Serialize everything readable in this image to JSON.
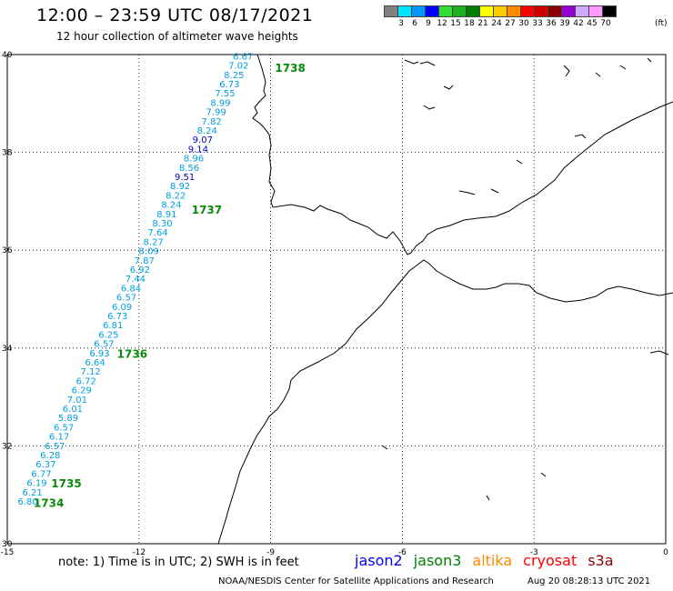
{
  "header": {
    "title": "12:00 – 23:59 UTC 08/17/2021",
    "subtitle": "12 hour collection of altimeter wave heights"
  },
  "legend": {
    "colors": [
      "#808080",
      "#00e5ff",
      "#0096ff",
      "#0000ff",
      "#33dd33",
      "#1fb01f",
      "#008000",
      "#ffff00",
      "#ffcc00",
      "#ff8c00",
      "#ff0000",
      "#cc0000",
      "#8b0000",
      "#9400d3",
      "#ccaaff",
      "#ff99ff",
      "#000000"
    ],
    "labels": [
      "3",
      "6",
      "9",
      "12",
      "15",
      "18",
      "21",
      "24",
      "27",
      "30",
      "33",
      "36",
      "39",
      "42",
      "45",
      "70"
    ],
    "unit": "(ft)"
  },
  "axes": {
    "lon_ticks": [
      "-15",
      "-12",
      "-9",
      "-6",
      "-3",
      "0"
    ],
    "lat_ticks": [
      "40",
      "38",
      "36",
      "34",
      "32",
      "30"
    ]
  },
  "chart_data": {
    "type": "map-track",
    "lon_range": [
      -15,
      0
    ],
    "lat_range": [
      30,
      40
    ],
    "track_values": [
      "6.67",
      "7.02",
      "8.25",
      "6.73",
      "7.55",
      "8.99",
      "7.99",
      "7.82",
      "8.24",
      "9.07",
      "9.14",
      "8.96",
      "8.56",
      "9.51",
      "8.92",
      "8.22",
      "8.24",
      "8.91",
      "8.30",
      "7.64",
      "8.27",
      "8.09",
      "7.87",
      "6.92",
      "7.44",
      "6.84",
      "6.57",
      "6.09",
      "6.73",
      "6.81",
      "6.25",
      "6.57",
      "6.93",
      "6.64",
      "7.12",
      "6.72",
      "6.29",
      "7.01",
      "6.01",
      "5.89",
      "6.57",
      "6.17",
      "6.57",
      "6.28",
      "6.37",
      "6.77",
      "6.19",
      "6.21",
      "6.80"
    ],
    "track_colors": [
      "light",
      "light",
      "light",
      "light",
      "light",
      "light",
      "light",
      "light",
      "light",
      "dark",
      "dark",
      "light",
      "light",
      "dark",
      "light",
      "light",
      "light",
      "light",
      "light",
      "light",
      "light",
      "light",
      "light",
      "light",
      "light",
      "light",
      "light",
      "light",
      "light",
      "light",
      "light",
      "light",
      "light",
      "light",
      "light",
      "light",
      "light",
      "light",
      "light",
      "light",
      "light",
      "light",
      "light",
      "light",
      "light",
      "light",
      "light",
      "light",
      "light"
    ],
    "pass_labels": [
      "1738",
      "1737",
      "1736",
      "1735",
      "1734"
    ]
  },
  "footer": {
    "note": "note:  1) Time is in UTC;  2) SWH is in feet",
    "satellites": [
      {
        "name": "jason2",
        "color": "#0000ff"
      },
      {
        "name": "jason3",
        "color": "#008000"
      },
      {
        "name": "altika",
        "color": "#ff8c00"
      },
      {
        "name": "cryosat",
        "color": "#ff0000"
      },
      {
        "name": "s3a",
        "color": "#8b0000"
      }
    ],
    "credit": "NOAA/NESDIS Center for Satellite Applications and Research",
    "timestamp": "Aug 20 08:28:13 UTC 2021"
  }
}
